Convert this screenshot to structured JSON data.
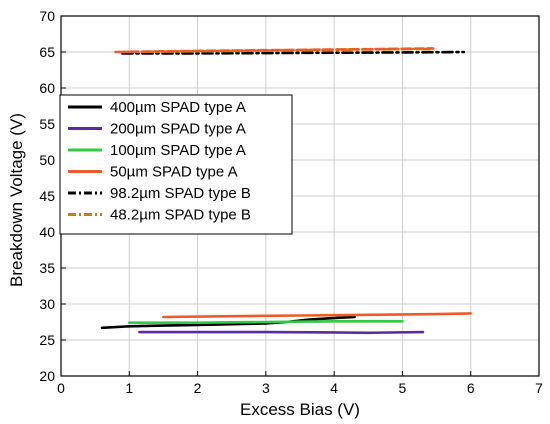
{
  "chart_data": {
    "type": "line",
    "title": "",
    "xlabel": "Excess Bias (V)",
    "ylabel": "Breakdown Voltage (V)",
    "xlim": [
      0,
      7
    ],
    "ylim": [
      20,
      70
    ],
    "xticks": [
      "0",
      "1",
      "2",
      "3",
      "4",
      "5",
      "6",
      "7"
    ],
    "yticks": [
      "20",
      "25",
      "30",
      "35",
      "40",
      "45",
      "50",
      "55",
      "60",
      "65",
      "70"
    ],
    "grid": true,
    "legend_position": "upper-left",
    "series": [
      {
        "name": "400µm SPAD type A",
        "color": "#000000",
        "dash": "solid",
        "x": [
          0.6,
          1.0,
          1.5,
          2.0,
          2.5,
          3.0,
          3.3,
          3.6,
          3.9,
          4.3
        ],
        "y": [
          26.7,
          26.9,
          27.0,
          27.1,
          27.2,
          27.3,
          27.5,
          27.8,
          28.0,
          28.2
        ]
      },
      {
        "name": "200µm SPAD type A",
        "color": "#5b2c9f",
        "dash": "solid",
        "x": [
          1.15,
          2.0,
          3.0,
          4.0,
          4.5,
          5.3
        ],
        "y": [
          26.1,
          26.1,
          26.1,
          26.05,
          26.0,
          26.1
        ]
      },
      {
        "name": "100µm SPAD type A",
        "color": "#2ecc40",
        "dash": "solid",
        "x": [
          1.0,
          2.0,
          3.0,
          4.0,
          5.0
        ],
        "y": [
          27.4,
          27.4,
          27.5,
          27.6,
          27.6
        ]
      },
      {
        "name": "50µm SPAD type A",
        "color": "#f05a28",
        "dash": "solid",
        "x": [
          1.5,
          2.5,
          3.5,
          4.5,
          5.5,
          6.0
        ],
        "y": [
          28.2,
          28.3,
          28.4,
          28.5,
          28.6,
          28.7
        ]
      },
      {
        "name": "98.2µm SPAD type B",
        "color": "#000000",
        "dash": "dashdot",
        "x": [
          0.9,
          2.0,
          3.0,
          4.0,
          5.0,
          5.9
        ],
        "y": [
          64.8,
          64.8,
          64.85,
          64.9,
          64.95,
          65.0
        ]
      },
      {
        "name": "48.2µm SPAD type B",
        "color": "#b8860b",
        "dash": "dashdot",
        "x": [
          0.9,
          2.0,
          3.0,
          4.0,
          5.0,
          5.4
        ],
        "y": [
          65.0,
          65.1,
          65.2,
          65.3,
          65.4,
          65.4
        ]
      },
      {
        "name": "",
        "color": "#f05a28",
        "dash": "dash",
        "x": [
          0.8,
          2.0,
          3.0,
          4.0,
          5.0,
          5.45
        ],
        "y": [
          65.0,
          65.15,
          65.25,
          65.35,
          65.45,
          65.5
        ]
      }
    ]
  }
}
